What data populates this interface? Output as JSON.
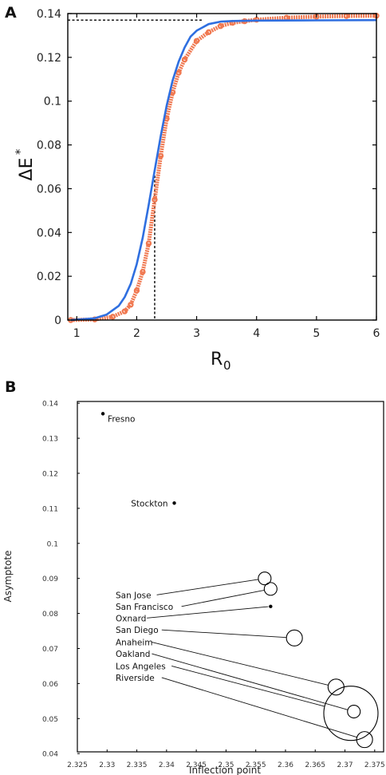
{
  "chart_data": [
    {
      "panel": "A",
      "type": "line",
      "xlabel": "R",
      "xlabel_sub": "0",
      "ylabel": "ΔE",
      "ylabel_sup": "*",
      "xlim": [
        0.85,
        6
      ],
      "ylim": [
        0,
        0.14
      ],
      "xticks": [
        1,
        2,
        3,
        4,
        5,
        6
      ],
      "xtick_labels": [
        "1",
        "2",
        "3",
        "4",
        "5",
        "6"
      ],
      "yticks": [
        0,
        0.02,
        0.04,
        0.06,
        0.08,
        0.1,
        0.12,
        0.14
      ],
      "ytick_labels": [
        "0",
        "0.02",
        "0.04",
        "0.06",
        "0.08",
        "0.1",
        "0.12",
        "0.14"
      ],
      "grid": false,
      "series": [
        {
          "kind": "simulated points",
          "color": "#f07850",
          "x": [
            0.9,
            1.3,
            1.6,
            1.8,
            1.9,
            2.0,
            2.1,
            2.2,
            2.3,
            2.4,
            2.5,
            2.6,
            2.7,
            2.8,
            3.0,
            3.2,
            3.4,
            3.6,
            3.8,
            4.0,
            4.5,
            5.0,
            5.5,
            6.0
          ],
          "y": [
            0.0,
            0.0003,
            0.0015,
            0.004,
            0.007,
            0.0135,
            0.022,
            0.035,
            0.055,
            0.075,
            0.092,
            0.104,
            0.113,
            0.119,
            0.1275,
            0.1315,
            0.1343,
            0.1358,
            0.1365,
            0.1372,
            0.1381,
            0.1386,
            0.1389,
            0.139
          ]
        },
        {
          "kind": "fitted curve",
          "color": "#2f6fe0",
          "x": [
            0.9,
            1.3,
            1.5,
            1.7,
            1.8,
            1.9,
            2.0,
            2.1,
            2.2,
            2.3,
            2.4,
            2.5,
            2.6,
            2.7,
            2.8,
            2.9,
            3.0,
            3.2,
            3.4,
            3.6,
            4.0,
            5.0,
            6.0
          ],
          "y": [
            0.0,
            0.0008,
            0.0025,
            0.0065,
            0.0105,
            0.0165,
            0.0255,
            0.0375,
            0.0525,
            0.0685,
            0.084,
            0.098,
            0.1095,
            0.118,
            0.1245,
            0.1295,
            0.1322,
            0.1352,
            0.1363,
            0.1366,
            0.1368,
            0.1369,
            0.137
          ]
        }
      ],
      "reference_lines": {
        "asymptote": 0.137,
        "inflection_x": 2.3
      }
    },
    {
      "panel": "B",
      "type": "scatter",
      "xlabel": "Inflection point",
      "ylabel": "Asymptote",
      "xlim": [
        2.325,
        2.3765
      ],
      "ylim": [
        0.0405,
        0.1405
      ],
      "xticks": [
        2.325,
        2.33,
        2.335,
        2.34,
        2.345,
        2.35,
        2.355,
        2.36,
        2.365,
        2.37,
        2.375
      ],
      "xtick_labels": [
        "2.325",
        "2.33",
        "2.335",
        "2.34",
        "2.345",
        "2.35",
        "2.355",
        "2.36",
        "2.365",
        "2.37",
        "2.375"
      ],
      "yticks": [
        0.04,
        0.05,
        0.06,
        0.07,
        0.08,
        0.09,
        0.1,
        0.11,
        0.12,
        0.13,
        0.14
      ],
      "ytick_labels": [
        "0.04",
        "0.05",
        "0.06",
        "0.07",
        "0.08",
        "0.09",
        "0.1",
        "0.11",
        "0.12",
        "0.13",
        "0.14"
      ],
      "grid": false,
      "points": [
        {
          "name": "Fresno",
          "x": 2.3293,
          "y": 0.137,
          "size": 0,
          "label_side": "right"
        },
        {
          "name": "Stockton",
          "x": 2.3413,
          "y": 0.1115,
          "size": 0,
          "label_side": "left"
        },
        {
          "name": "San Jose",
          "x": 2.3565,
          "y": 0.09,
          "size": 8,
          "label_side": "callout",
          "label_y": 0.0853
        },
        {
          "name": "San Francisco",
          "x": 2.3575,
          "y": 0.087,
          "size": 8,
          "label_side": "callout",
          "label_y": 0.082
        },
        {
          "name": "Oxnard",
          "x": 2.3575,
          "y": 0.082,
          "size": 0,
          "label_side": "callout",
          "label_y": 0.0787
        },
        {
          "name": "San Diego",
          "x": 2.3615,
          "y": 0.073,
          "size": 10,
          "label_side": "callout",
          "label_y": 0.0753
        },
        {
          "name": "Anaheim",
          "x": 2.3685,
          "y": 0.059,
          "size": 10,
          "label_side": "callout",
          "label_y": 0.0718
        },
        {
          "name": "Oakland",
          "x": 2.3715,
          "y": 0.052,
          "size": 8,
          "label_side": "callout",
          "label_y": 0.0685
        },
        {
          "name": "Los Angeles",
          "x": 2.371,
          "y": 0.0515,
          "size": 34,
          "label_side": "callout",
          "label_y": 0.065
        },
        {
          "name": "Riverside",
          "x": 2.3733,
          "y": 0.044,
          "size": 10,
          "label_side": "callout",
          "label_y": 0.0617
        }
      ]
    }
  ],
  "panel_labels": {
    "a": "A",
    "b": "B"
  }
}
